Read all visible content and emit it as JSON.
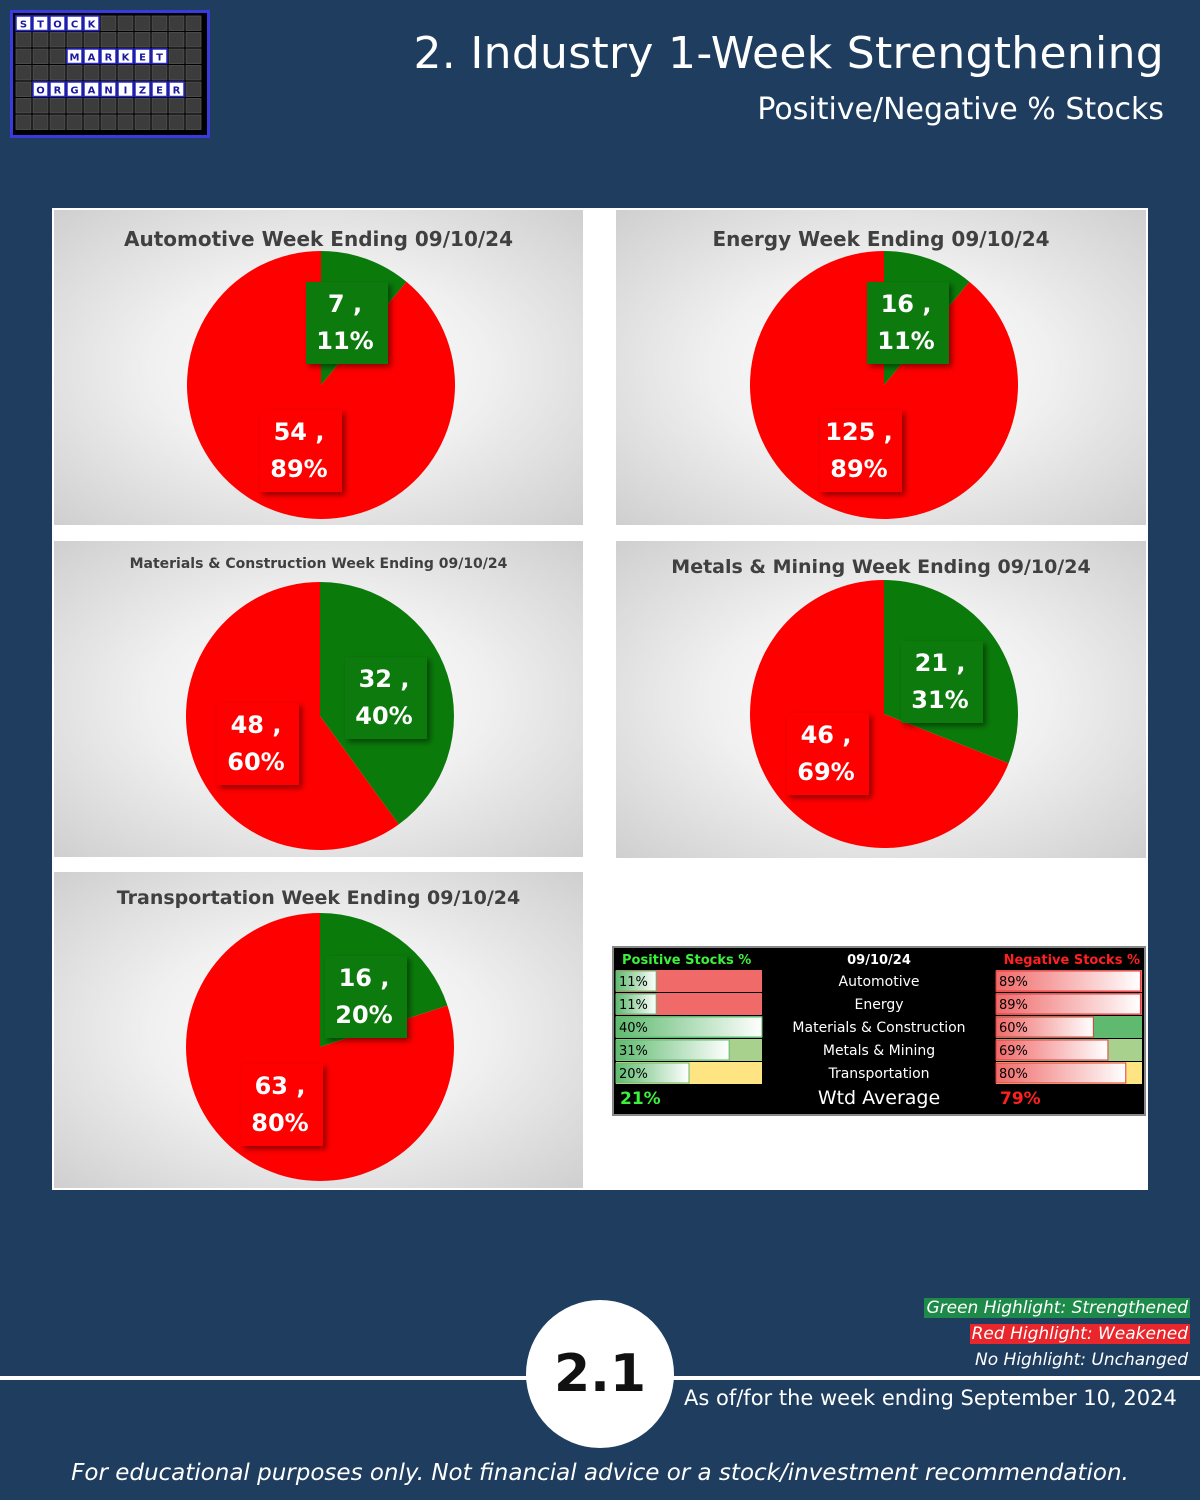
{
  "header": {
    "title": "2. Industry 1-Week Strengthening",
    "subtitle": "Positive/Negative % Stocks",
    "logo": {
      "words": [
        "STOCK",
        "MARKET",
        "ORGANIZER"
      ]
    }
  },
  "colors": {
    "positive": "#0a7a0a",
    "negative": "#ff0000",
    "background": "#1e3d5f"
  },
  "chart_data": [
    {
      "type": "pie",
      "title": "Automotive Week Ending 09/10/24",
      "slices": [
        {
          "label": "Positive",
          "count": "7",
          "value": 11
        },
        {
          "label": "Negative",
          "count": "54",
          "value": 89
        }
      ]
    },
    {
      "type": "pie",
      "title": "Energy Week Ending 09/10/24",
      "slices": [
        {
          "label": "Positive",
          "count": "16",
          "value": 11
        },
        {
          "label": "Negative",
          "count": "125",
          "value": 89
        }
      ]
    },
    {
      "type": "pie",
      "title": "Materials & Construction Week Ending 09/10/24",
      "slices": [
        {
          "label": "Positive",
          "count": "32",
          "value": 40
        },
        {
          "label": "Negative",
          "count": "48",
          "value": 60
        }
      ]
    },
    {
      "type": "pie",
      "title": "Metals & Mining  Week Ending 09/10/24",
      "slices": [
        {
          "label": "Positive",
          "count": "21",
          "value": 31
        },
        {
          "label": "Negative",
          "count": "46",
          "value": 69
        }
      ]
    },
    {
      "type": "pie",
      "title": "Transportation  Week Ending 09/10/24",
      "slices": [
        {
          "label": "Positive",
          "count": "16",
          "value": 20
        },
        {
          "label": "Negative",
          "count": "63",
          "value": 80
        }
      ]
    },
    {
      "type": "table",
      "headers": {
        "positive": "Positive Stocks %",
        "date": "09/10/24",
        "negative": "Negative Stocks %"
      },
      "rows": [
        {
          "name": "Automotive",
          "pos": 11,
          "neg": 89,
          "pos_text": "11%",
          "neg_text": "89%",
          "pos_cell": "#f06a6a",
          "neg_cell": "#f06a6a"
        },
        {
          "name": "Energy",
          "pos": 11,
          "neg": 89,
          "pos_text": "11%",
          "neg_text": "89%",
          "pos_cell": "#f06a6a",
          "neg_cell": "#f06a6a"
        },
        {
          "name": "Materials & Construction",
          "pos": 40,
          "neg": 60,
          "pos_text": "40%",
          "neg_text": "60%",
          "pos_cell": "#5fba6f",
          "neg_cell": "#5fba6f"
        },
        {
          "name": "Metals & Mining",
          "pos": 31,
          "neg": 69,
          "pos_text": "31%",
          "neg_text": "69%",
          "pos_cell": "#a9d18e",
          "neg_cell": "#a9d18e"
        },
        {
          "name": "Transportation",
          "pos": 20,
          "neg": 80,
          "pos_text": "20%",
          "neg_text": "80%",
          "pos_cell": "#ffe483",
          "neg_cell": "#ffe483"
        }
      ],
      "footer": {
        "pos": "21%",
        "label": "Wtd Average",
        "neg": "79%"
      }
    }
  ],
  "legend": {
    "green": "Green Highlight: Strengthened",
    "red": "Red Highlight: Weakened",
    "none": "No Highlight: Unchanged"
  },
  "footer": {
    "page_number": "2.1",
    "as_of": "As of/for the week ending September 10, 2024",
    "disclaimer": "For educational purposes only. Not financial advice or a stock/investment recommendation."
  }
}
